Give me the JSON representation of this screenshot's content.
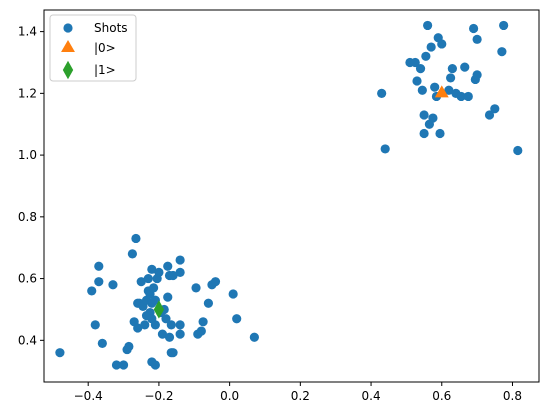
{
  "chart_data": {
    "type": "scatter",
    "title": "",
    "xlabel": "",
    "ylabel": "",
    "xlim": [
      -0.525,
      0.875
    ],
    "ylim": [
      0.265,
      1.47
    ],
    "xticks": [
      -0.4,
      -0.2,
      0.0,
      0.2,
      0.4,
      0.6,
      0.8
    ],
    "xtick_labels": [
      "−0.4",
      "−0.2",
      "0.0",
      "0.2",
      "0.4",
      "0.6",
      "0.8"
    ],
    "yticks": [
      0.4,
      0.6,
      0.8,
      1.0,
      1.2,
      1.4
    ],
    "ytick_labels": [
      "0.4",
      "0.6",
      "0.8",
      "1.0",
      "1.2",
      "1.4"
    ],
    "grid": false,
    "legend_position": "upper-left",
    "series": [
      {
        "name": "Shots",
        "marker": "circle",
        "color": "#1f77b4",
        "points": [
          [
            -0.48,
            0.36
          ],
          [
            -0.39,
            0.56
          ],
          [
            -0.38,
            0.45
          ],
          [
            -0.37,
            0.59
          ],
          [
            -0.37,
            0.64
          ],
          [
            -0.36,
            0.39
          ],
          [
            -0.33,
            0.58
          ],
          [
            -0.32,
            0.32
          ],
          [
            -0.3,
            0.32
          ],
          [
            -0.29,
            0.37
          ],
          [
            -0.285,
            0.38
          ],
          [
            -0.275,
            0.68
          ],
          [
            -0.27,
            0.46
          ],
          [
            -0.265,
            0.73
          ],
          [
            -0.26,
            0.44
          ],
          [
            -0.26,
            0.52
          ],
          [
            -0.255,
            0.52
          ],
          [
            -0.25,
            0.59
          ],
          [
            -0.245,
            0.51
          ],
          [
            -0.24,
            0.45
          ],
          [
            -0.235,
            0.48
          ],
          [
            -0.235,
            0.53
          ],
          [
            -0.23,
            0.56
          ],
          [
            -0.23,
            0.6
          ],
          [
            -0.225,
            0.49
          ],
          [
            -0.225,
            0.55
          ],
          [
            -0.22,
            0.33
          ],
          [
            -0.22,
            0.47
          ],
          [
            -0.22,
            0.52
          ],
          [
            -0.22,
            0.63
          ],
          [
            -0.215,
            0.57
          ],
          [
            -0.21,
            0.32
          ],
          [
            -0.21,
            0.45
          ],
          [
            -0.21,
            0.53
          ],
          [
            -0.205,
            0.6
          ],
          [
            -0.2,
            0.62
          ],
          [
            -0.195,
            0.49
          ],
          [
            -0.19,
            0.42
          ],
          [
            -0.185,
            0.5
          ],
          [
            -0.18,
            0.47
          ],
          [
            -0.175,
            0.54
          ],
          [
            -0.175,
            0.64
          ],
          [
            -0.17,
            0.41
          ],
          [
            -0.17,
            0.61
          ],
          [
            -0.165,
            0.36
          ],
          [
            -0.165,
            0.45
          ],
          [
            -0.16,
            0.36
          ],
          [
            -0.16,
            0.61
          ],
          [
            -0.14,
            0.42
          ],
          [
            -0.14,
            0.45
          ],
          [
            -0.14,
            0.62
          ],
          [
            -0.14,
            0.66
          ],
          [
            -0.095,
            0.57
          ],
          [
            -0.09,
            0.42
          ],
          [
            -0.08,
            0.43
          ],
          [
            -0.075,
            0.46
          ],
          [
            -0.06,
            0.52
          ],
          [
            -0.05,
            0.58
          ],
          [
            -0.04,
            0.59
          ],
          [
            0.01,
            0.55
          ],
          [
            0.02,
            0.47
          ],
          [
            0.07,
            0.41
          ],
          [
            0.43,
            1.2
          ],
          [
            0.44,
            1.02
          ],
          [
            0.51,
            1.3
          ],
          [
            0.525,
            1.3
          ],
          [
            0.53,
            1.24
          ],
          [
            0.54,
            1.28
          ],
          [
            0.545,
            1.21
          ],
          [
            0.55,
            1.07
          ],
          [
            0.55,
            1.13
          ],
          [
            0.555,
            1.32
          ],
          [
            0.56,
            1.42
          ],
          [
            0.565,
            1.1
          ],
          [
            0.57,
            1.35
          ],
          [
            0.575,
            1.12
          ],
          [
            0.58,
            1.22
          ],
          [
            0.585,
            1.19
          ],
          [
            0.59,
            1.38
          ],
          [
            0.595,
            1.07
          ],
          [
            0.6,
            1.36
          ],
          [
            0.62,
            1.21
          ],
          [
            0.625,
            1.25
          ],
          [
            0.63,
            1.28
          ],
          [
            0.64,
            1.2
          ],
          [
            0.655,
            1.19
          ],
          [
            0.665,
            1.285
          ],
          [
            0.675,
            1.19
          ],
          [
            0.69,
            1.41
          ],
          [
            0.695,
            1.245
          ],
          [
            0.7,
            1.26
          ],
          [
            0.7,
            1.375
          ],
          [
            0.735,
            1.13
          ],
          [
            0.75,
            1.15
          ],
          [
            0.77,
            1.335
          ],
          [
            0.775,
            1.42
          ],
          [
            0.815,
            1.015
          ]
        ]
      },
      {
        "name": "|0>",
        "marker": "triangle-up",
        "color": "#ff7f0e",
        "points": [
          [
            0.6,
            1.2
          ]
        ]
      },
      {
        "name": "|1>",
        "marker": "thin-diamond",
        "color": "#2ca02c",
        "points": [
          [
            -0.2,
            0.5
          ]
        ]
      }
    ]
  }
}
